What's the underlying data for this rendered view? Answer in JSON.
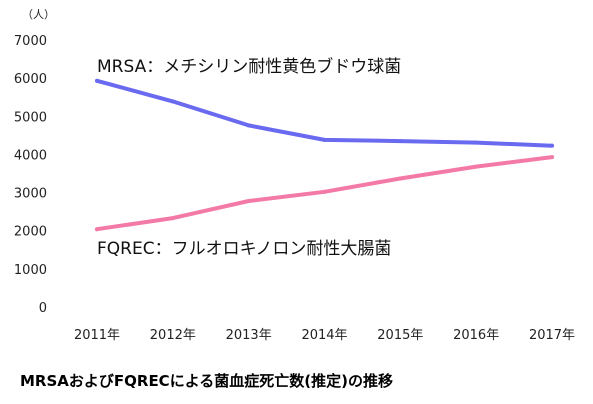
{
  "chart_data": {
    "type": "line",
    "y_unit": "（人）",
    "categories": [
      "2011年",
      "2012年",
      "2013年",
      "2014年",
      "2015年",
      "2016年",
      "2017年"
    ],
    "series": [
      {
        "name": "MRSA：メチシリン耐性黄色ブドウ球菌",
        "color": "#6a6af0",
        "values": [
          5930,
          5390,
          4760,
          4380,
          4350,
          4310,
          4230
        ]
      },
      {
        "name": "FQREC：フルオロキノロン耐性大腸菌",
        "color": "#f37aa6",
        "values": [
          2040,
          2330,
          2780,
          3020,
          3370,
          3680,
          3930
        ]
      }
    ],
    "ylim": [
      0,
      7000
    ],
    "yticks": [
      0,
      1000,
      2000,
      3000,
      4000,
      5000,
      6000,
      7000
    ],
    "grid": false
  },
  "caption": "MRSAおよびFQRECによる菌血症死亡数(推定)の推移"
}
